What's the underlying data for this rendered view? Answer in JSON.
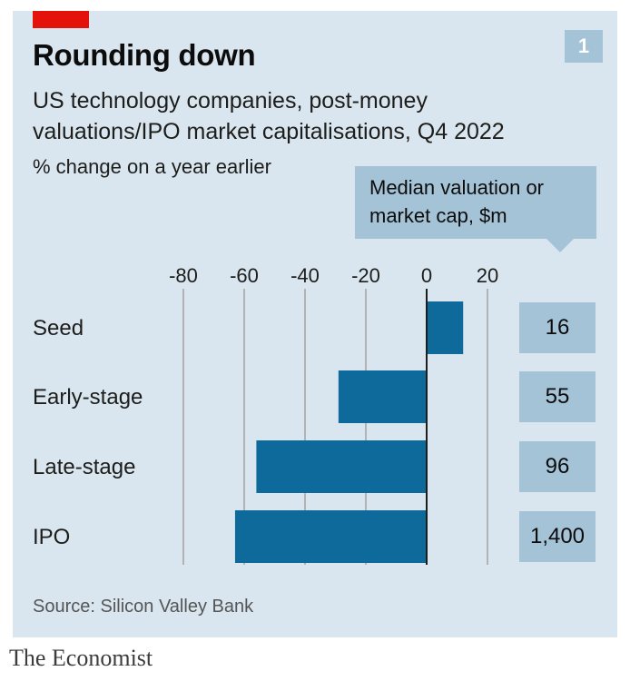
{
  "header": {
    "chart_number": "1",
    "title": "Rounding down",
    "subtitle": "US technology companies, post-money valuations/IPO market capitalisations, Q4 2022",
    "unit_label": "% change on a year earlier"
  },
  "callout": {
    "line1": "Median valuation or",
    "line2": "market cap, $m"
  },
  "colors": {
    "panel_background": "#d9e6ef",
    "bar": "#0e6a9a",
    "value_box": "#a4c3d6",
    "accent_red": "#e3120b"
  },
  "chart_data": {
    "type": "bar",
    "orientation": "horizontal",
    "categories": [
      "Seed",
      "Early-stage",
      "Late-stage",
      "IPO"
    ],
    "values": [
      12,
      -29,
      -56,
      -63
    ],
    "median_values_label": [
      "16",
      "55",
      "96",
      "1,400"
    ],
    "x_ticks": [
      -80,
      -60,
      -40,
      -20,
      0,
      20
    ],
    "xlim": [
      -80,
      20
    ],
    "grid": true
  },
  "footer": {
    "source": "Source: Silicon Valley Bank",
    "brand": "The Economist"
  }
}
